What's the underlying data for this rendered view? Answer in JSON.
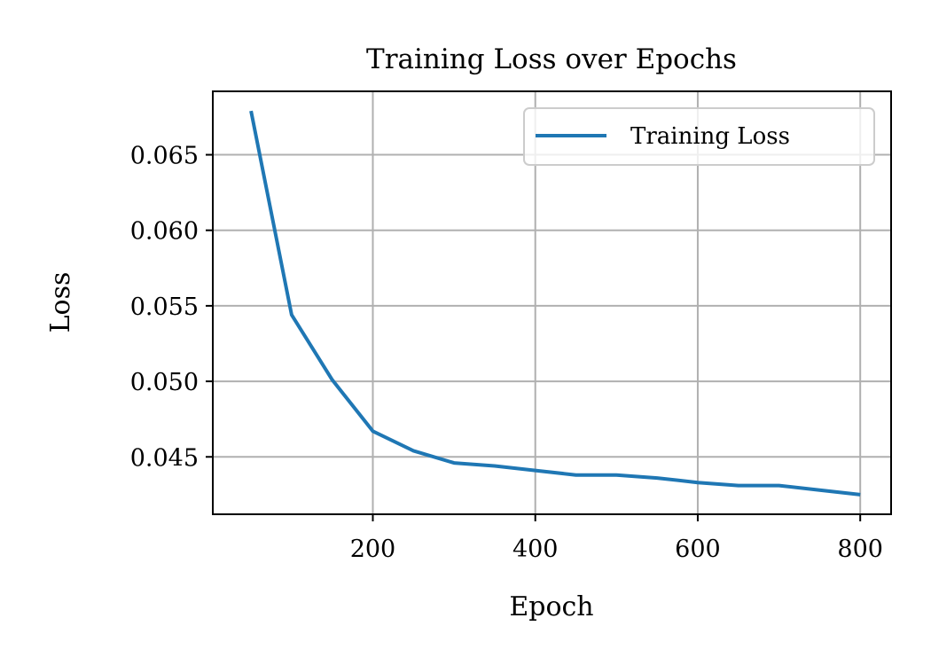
{
  "chart_data": {
    "type": "line",
    "title": "Training Loss over Epochs",
    "xlabel": "Epoch",
    "ylabel": "Loss",
    "xlim": [
      3,
      838
    ],
    "ylim": [
      0.0412,
      0.0692
    ],
    "xticks": [
      200,
      400,
      600,
      800
    ],
    "yticks": [
      0.045,
      0.05,
      0.055,
      0.06,
      0.065
    ],
    "xtick_labels": [
      "200",
      "400",
      "600",
      "800"
    ],
    "ytick_labels": [
      "0.045",
      "0.050",
      "0.055",
      "0.060",
      "0.065"
    ],
    "grid": true,
    "legend_position": "upper right",
    "series": [
      {
        "name": "Training Loss",
        "color": "#1f77b4",
        "x": [
          50,
          100,
          150,
          200,
          250,
          300,
          350,
          400,
          450,
          500,
          550,
          600,
          650,
          700,
          750,
          800
        ],
        "y": [
          0.0679,
          0.0544,
          0.0501,
          0.0467,
          0.0454,
          0.0446,
          0.0444,
          0.0441,
          0.0438,
          0.0438,
          0.0436,
          0.0433,
          0.0431,
          0.0431,
          0.0428,
          0.0425
        ]
      }
    ]
  }
}
